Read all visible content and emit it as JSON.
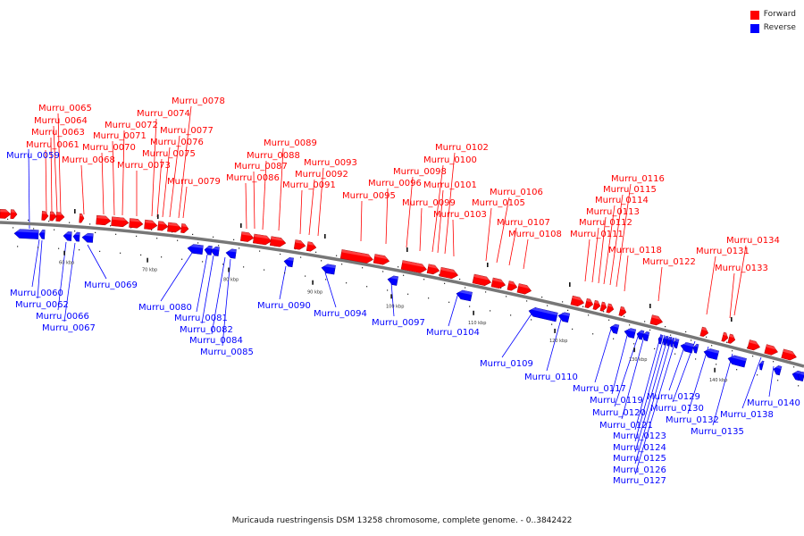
{
  "legend": {
    "forward": {
      "label": "Forward",
      "color": "#ff0000"
    },
    "reverse": {
      "label": "Reverse",
      "color": "#0000ff"
    }
  },
  "caption": "Muricauda ruestringensis DSM 13258 chromosome, complete genome. - 0..3842422",
  "ticks": [
    "60 kbp",
    "70 kbp",
    "80 kbp",
    "90 kbp",
    "100 kbp",
    "110 kbp",
    "120 kbp",
    "130 kbp",
    "140 kbp"
  ],
  "forward_genes": [
    "Murru_0061",
    "Murru_0063",
    "Murru_0064",
    "Murru_0065",
    "Murru_0068",
    "Murru_0070",
    "Murru_0071",
    "Murru_0072",
    "Murru_0073",
    "Murru_0074",
    "Murru_0075",
    "Murru_0076",
    "Murru_0077",
    "Murru_0078",
    "Murru_0079",
    "Murru_0086",
    "Murru_0087",
    "Murru_0088",
    "Murru_0089",
    "Murru_0091",
    "Murru_0092",
    "Murru_0093",
    "Murru_0095",
    "Murru_0096",
    "Murru_0098",
    "Murru_0099",
    "Murru_0100",
    "Murru_0101",
    "Murru_0102",
    "Murru_0103",
    "Murru_0105",
    "Murru_0106",
    "Murru_0107",
    "Murru_0108",
    "Murru_0111",
    "Murru_0112",
    "Murru_0113",
    "Murru_0114",
    "Murru_0115",
    "Murru_0116",
    "Murru_0118",
    "Murru_0122",
    "Murru_0131",
    "Murru_0133",
    "Murru_0134"
  ],
  "reverse_genes": [
    "Murru_0059",
    "Murru_0060",
    "Murru_0062",
    "Murru_0066",
    "Murru_0067",
    "Murru_0069",
    "Murru_0080",
    "Murru_0081",
    "Murru_0082",
    "Murru_0084",
    "Murru_0085",
    "Murru_0090",
    "Murru_0094",
    "Murru_0097",
    "Murru_0104",
    "Murru_0109",
    "Murru_0110",
    "Murru_0117",
    "Murru_0119",
    "Murru_0120",
    "Murru_0121",
    "Murru_0123",
    "Murru_0124",
    "Murru_0125",
    "Murru_0126",
    "Murru_0127",
    "Murru_0129",
    "Murru_0130",
    "Murru_0132",
    "Murru_0135",
    "Murru_0138",
    "Murru_0140"
  ]
}
